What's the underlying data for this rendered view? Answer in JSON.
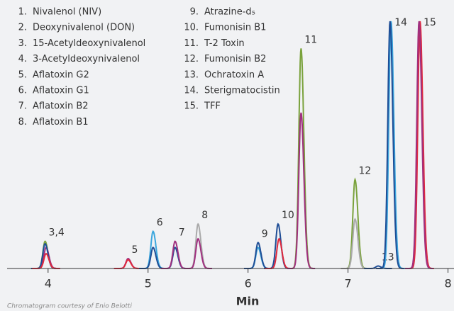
{
  "chart_data": {
    "type": "chromatogram",
    "x_label": "Min",
    "xlim": [
      3.59,
      8.06
    ],
    "xticks": [
      4,
      5,
      6,
      7,
      8
    ],
    "ylim": [
      0,
      100
    ],
    "legend": [
      {
        "number": "1.",
        "name": "Nivalenol (NIV)"
      },
      {
        "number": "2.",
        "name": "Deoxynivalenol (DON)"
      },
      {
        "number": "3.",
        "name": "15-Acetyldeoxynivalenol"
      },
      {
        "number": "4.",
        "name": "3-Acetyldeoxynivalenol"
      },
      {
        "number": "5.",
        "name": "Aflatoxin G2"
      },
      {
        "number": "6.",
        "name": "Aflatoxin G1"
      },
      {
        "number": "7.",
        "name": "Aflatoxin B2"
      },
      {
        "number": "8.",
        "name": "Aflatoxin B1"
      },
      {
        "number": "9.",
        "name": "Atrazine-d₅"
      },
      {
        "number": "10.",
        "name": "Fumonisin B1"
      },
      {
        "number": "11.",
        "name": "T-2 Toxin"
      },
      {
        "number": "12.",
        "name": "Fumonisin B2"
      },
      {
        "number": "13.",
        "name": "Ochratoxin A"
      },
      {
        "number": "14.",
        "name": "Sterigmatocistin"
      },
      {
        "number": "15.",
        "name": "TFF"
      }
    ],
    "peaks": [
      {
        "label": "3,4",
        "traces": [
          {
            "color": "#7aa23c",
            "rt": 3.97,
            "height": 11
          },
          {
            "color": "#a0307f",
            "rt": 3.98,
            "height": 8.5
          },
          {
            "color": "#1f4e96",
            "rt": 3.97,
            "height": 10
          },
          {
            "color": "#e0283c",
            "rt": 3.98,
            "height": 6
          }
        ]
      },
      {
        "label": "5",
        "traces": [
          {
            "color": "#a0307f",
            "rt": 4.8,
            "height": 4
          },
          {
            "color": "#e0283c",
            "rt": 4.8,
            "height": 3.5
          }
        ]
      },
      {
        "label": "6",
        "traces": [
          {
            "color": "#3aa6dd",
            "rt": 5.05,
            "height": 15
          },
          {
            "color": "#1f4e96",
            "rt": 5.05,
            "height": 8.5
          }
        ]
      },
      {
        "label": "7",
        "traces": [
          {
            "color": "#1f4e96",
            "rt": 5.27,
            "height": 8.5
          },
          {
            "color": "#a0307f",
            "rt": 5.27,
            "height": 11
          }
        ]
      },
      {
        "label": "8",
        "traces": [
          {
            "color": "#aaaaaa",
            "rt": 5.5,
            "height": 18
          },
          {
            "color": "#a0307f",
            "rt": 5.5,
            "height": 12
          }
        ]
      },
      {
        "label": "9",
        "traces": [
          {
            "color": "#3aa6dd",
            "rt": 6.1,
            "height": 8.5
          },
          {
            "color": "#1f4e96",
            "rt": 6.1,
            "height": 10.5
          }
        ]
      },
      {
        "label": "10",
        "traces": [
          {
            "color": "#1f4e96",
            "rt": 6.3,
            "height": 18
          },
          {
            "color": "#e0283c",
            "rt": 6.31,
            "height": 12
          }
        ]
      },
      {
        "label": "11",
        "traces": [
          {
            "color": "#7aa23c",
            "rt": 6.53,
            "height": 89
          },
          {
            "color": "#a0307f",
            "rt": 6.53,
            "height": 63
          }
        ]
      },
      {
        "label": "12",
        "traces": [
          {
            "color": "#7aa23c",
            "rt": 7.07,
            "height": 36
          },
          {
            "color": "#aaaaaa",
            "rt": 7.07,
            "height": 20
          }
        ]
      },
      {
        "label": "13",
        "traces": [
          {
            "color": "#1f4e96",
            "rt": 7.3,
            "height": 1
          }
        ]
      },
      {
        "label": "14",
        "traces": [
          {
            "color": "#3aa6dd",
            "rt": 7.43,
            "height": 100
          },
          {
            "color": "#1f4e96",
            "rt": 7.42,
            "height": 100
          }
        ]
      },
      {
        "label": "15",
        "traces": [
          {
            "color": "#e0283c",
            "rt": 7.72,
            "height": 100
          },
          {
            "color": "#a0307f",
            "rt": 7.71,
            "height": 100
          }
        ]
      }
    ],
    "credit": "Chromatogram courtesy of Enio Belotti"
  }
}
